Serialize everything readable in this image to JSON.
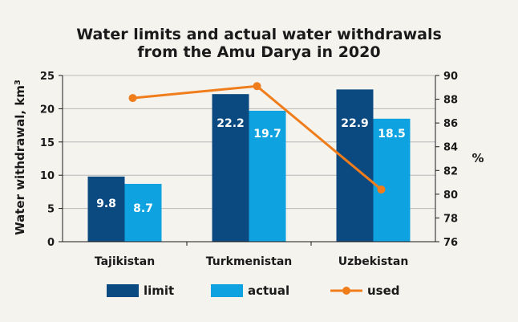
{
  "chart_data": {
    "type": "bar",
    "title_line1": "Water limits and actual water withdrawals",
    "title_line2": "from the Amu Darya in 2020",
    "ylabel_main": "Water withdrawal, km",
    "ylabel_sup": "3",
    "y2label": "%",
    "categories": [
      "Tajikistan",
      "Turkmenistan",
      "Uzbekistan"
    ],
    "ylim": [
      0,
      25
    ],
    "yticks": [
      0,
      5,
      10,
      15,
      20,
      25
    ],
    "y2lim": [
      76,
      90
    ],
    "y2ticks": [
      76,
      78,
      80,
      82,
      84,
      86,
      88,
      90
    ],
    "series": [
      {
        "name": "limit",
        "type": "bar",
        "values": [
          9.8,
          22.2,
          22.9
        ],
        "labels": [
          "9.8",
          "22.2",
          "22.9"
        ],
        "color": "#0b4a80"
      },
      {
        "name": "actual",
        "type": "bar",
        "values": [
          8.7,
          19.7,
          18.5
        ],
        "labels": [
          "8.7",
          "19.7",
          "18.5"
        ],
        "color": "#0ea3e0"
      },
      {
        "name": "used",
        "type": "line",
        "axis": "right",
        "values": [
          88.1,
          89.1,
          80.4
        ],
        "color": "#f07d1c"
      }
    ],
    "grid": true,
    "legend_position": "bottom"
  }
}
